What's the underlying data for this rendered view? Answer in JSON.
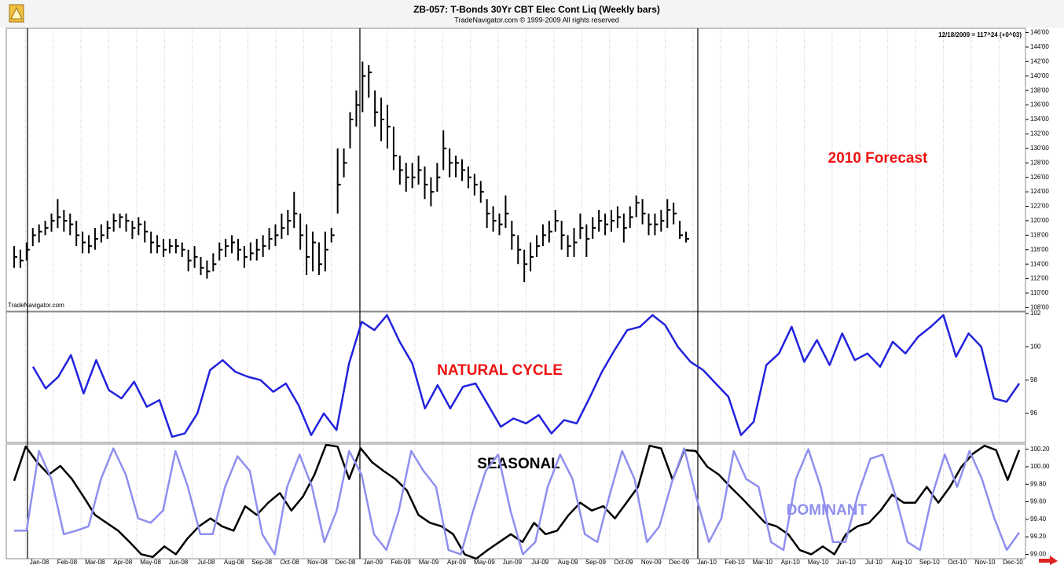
{
  "chart_data": [
    {
      "type": "ohlc",
      "title": "ZB-057:  T-Bonds 30Yr CBT Elec Cont Liq  (Weekly bars)",
      "subtitle": "TradeNavigator.com © 1999-2009 All rights reserved",
      "annotations": [
        "2010 Forecast",
        "TradeNavigator.com",
        "12/18/2009 = 117^24 (+0^03)"
      ],
      "color": "#000000",
      "ylim": [
        107.5,
        146.6
      ],
      "yticks": [
        {
          "value": 108,
          "label": "108'00"
        },
        {
          "value": 110,
          "label": "110'00"
        },
        {
          "value": 112,
          "label": "112'00"
        },
        {
          "value": 114,
          "label": "114'00"
        },
        {
          "value": 116,
          "label": "116'00"
        },
        {
          "value": 118,
          "label": "118'00"
        },
        {
          "value": 120,
          "label": "120'00"
        },
        {
          "value": 122,
          "label": "122'00"
        },
        {
          "value": 124,
          "label": "124'00"
        },
        {
          "value": 126,
          "label": "126'00"
        },
        {
          "value": 128,
          "label": "128'00"
        },
        {
          "value": 130,
          "label": "130'00"
        },
        {
          "value": 132,
          "label": "132'00"
        },
        {
          "value": 134,
          "label": "134'00"
        },
        {
          "value": 136,
          "label": "136'00"
        },
        {
          "value": 138,
          "label": "138'00"
        },
        {
          "value": 140,
          "label": "140'00"
        },
        {
          "value": 142,
          "label": "142'00"
        },
        {
          "value": 144,
          "label": "144'00"
        },
        {
          "value": 146,
          "label": "146'00"
        }
      ],
      "bars": [
        [
          116.5,
          113.5,
          115
        ],
        [
          116,
          113.5,
          114.5
        ],
        [
          117,
          114.5,
          116
        ],
        [
          119,
          116.5,
          118
        ],
        [
          119.5,
          117,
          118.5
        ],
        [
          120,
          118,
          119
        ],
        [
          121,
          118.5,
          120
        ],
        [
          123,
          119,
          120.5
        ],
        [
          121.5,
          118.5,
          120
        ],
        [
          121,
          118,
          119.5
        ],
        [
          120,
          116.5,
          118
        ],
        [
          118.5,
          115.5,
          117
        ],
        [
          118,
          115.5,
          116.5
        ],
        [
          119,
          116,
          117.5
        ],
        [
          119.5,
          117,
          118
        ],
        [
          120,
          117.5,
          119
        ],
        [
          121,
          118.5,
          120
        ],
        [
          121,
          119,
          120.5
        ],
        [
          121,
          118.5,
          120
        ],
        [
          120,
          117.5,
          119
        ],
        [
          120.5,
          118,
          119.5
        ],
        [
          120,
          117,
          118.5
        ],
        [
          118.5,
          115.5,
          117
        ],
        [
          118,
          115.5,
          116.5
        ],
        [
          117.5,
          115,
          116
        ],
        [
          117.5,
          115.5,
          116.5
        ],
        [
          117.5,
          115.5,
          116.5
        ],
        [
          117,
          115,
          116
        ],
        [
          116,
          113,
          114.5
        ],
        [
          116.5,
          113.5,
          115
        ],
        [
          115,
          112.5,
          113.5
        ],
        [
          114.5,
          112,
          113
        ],
        [
          115.5,
          113,
          114
        ],
        [
          117,
          114.5,
          116
        ],
        [
          117.5,
          115,
          116.5
        ],
        [
          118,
          115.5,
          117
        ],
        [
          117.5,
          114.5,
          116
        ],
        [
          116.5,
          113.5,
          115
        ],
        [
          117,
          114.5,
          115.5
        ],
        [
          117.5,
          114.5,
          116
        ],
        [
          118,
          115,
          116.5
        ],
        [
          119,
          116,
          117.5
        ],
        [
          119.5,
          116.5,
          118
        ],
        [
          121,
          117.5,
          119
        ],
        [
          121.5,
          118,
          120
        ],
        [
          124,
          119,
          121
        ],
        [
          121,
          116,
          118
        ],
        [
          119.5,
          112.5,
          115
        ],
        [
          118.5,
          113,
          117
        ],
        [
          117,
          112.5,
          114
        ],
        [
          118.5,
          113,
          116
        ],
        [
          119,
          117,
          118
        ],
        [
          130,
          121,
          125
        ],
        [
          130,
          126,
          128
        ],
        [
          135,
          130,
          134
        ],
        [
          138,
          133,
          136
        ],
        [
          142,
          135,
          140
        ],
        [
          141.5,
          137,
          140.5
        ],
        [
          138,
          133,
          135
        ],
        [
          137,
          131,
          134
        ],
        [
          136,
          130,
          133
        ],
        [
          133,
          127,
          129
        ],
        [
          129,
          125,
          127
        ],
        [
          128,
          124,
          126
        ],
        [
          128,
          124.5,
          126
        ],
        [
          129,
          125,
          127
        ],
        [
          127.5,
          123,
          125
        ],
        [
          126,
          122,
          124
        ],
        [
          128,
          124,
          126
        ],
        [
          132.5,
          127,
          130
        ],
        [
          130,
          126,
          128
        ],
        [
          129,
          126,
          128
        ],
        [
          128.5,
          125.5,
          127
        ],
        [
          127.5,
          124.5,
          126
        ],
        [
          126.5,
          123.5,
          125
        ],
        [
          125.5,
          122.5,
          124
        ],
        [
          123,
          119,
          121
        ],
        [
          122,
          118.5,
          120
        ],
        [
          121,
          118,
          119.5
        ],
        [
          123.5,
          119,
          121
        ],
        [
          120,
          116,
          118
        ],
        [
          118,
          114,
          116
        ],
        [
          116,
          111.5,
          114
        ],
        [
          117,
          113,
          115
        ],
        [
          118,
          115,
          116.5
        ],
        [
          119.5,
          116.5,
          118
        ],
        [
          120,
          117,
          118.5
        ],
        [
          121.5,
          118.5,
          120
        ],
        [
          120,
          116,
          118
        ],
        [
          118,
          115,
          116.5
        ],
        [
          119,
          115,
          117
        ],
        [
          121,
          117.5,
          119
        ],
        [
          119.5,
          115,
          117.5
        ],
        [
          120.5,
          117.5,
          119
        ],
        [
          121.5,
          118.5,
          120
        ],
        [
          121,
          118,
          119.5
        ],
        [
          121.5,
          118.5,
          120
        ],
        [
          122,
          119,
          120.5
        ],
        [
          121,
          117,
          119
        ],
        [
          122,
          119,
          120.5
        ],
        [
          123.5,
          120.5,
          122.5
        ],
        [
          123,
          119.5,
          121
        ],
        [
          121,
          118,
          119.5
        ],
        [
          121,
          118,
          119.5
        ],
        [
          121.5,
          118.5,
          120
        ],
        [
          123,
          119,
          121.5
        ],
        [
          122.5,
          119.5,
          121
        ],
        [
          120,
          117.5,
          118
        ],
        [
          118.5,
          117,
          117.5
        ]
      ]
    },
    {
      "type": "line",
      "ylim": [
        94.26,
        102.09
      ],
      "yticks": [
        96,
        98,
        100,
        102
      ],
      "series": [
        {
          "name": "NATURAL CYCLE",
          "color": "#2222dd",
          "values": [
            98.8,
            97.5,
            98.2,
            99.5,
            97.2,
            99.2,
            97.4,
            96.9,
            97.9,
            96.4,
            96.8,
            94.6,
            94.8,
            96.0,
            98.6,
            99.2,
            98.5,
            98.2,
            98.0,
            97.3,
            97.8,
            96.5,
            94.7,
            96.0,
            95.0,
            99.0,
            101.5,
            101.0,
            101.9,
            100.3,
            99.0,
            96.3,
            97.7,
            96.3,
            97.6,
            97.8,
            96.5,
            95.2,
            95.7,
            95.4,
            95.9,
            94.8,
            95.6,
            95.4,
            96.9,
            98.5,
            99.8,
            101.0,
            101.2,
            101.9,
            101.3,
            100.0,
            99.1,
            98.6,
            97.8,
            97.0,
            94.7,
            95.5,
            98.9,
            99.6,
            101.2,
            99.1,
            100.4,
            98.9,
            100.8,
            99.2,
            99.6,
            98.8,
            100.3,
            99.6,
            100.6,
            101.2,
            101.9,
            99.4,
            100.8,
            100.0,
            96.9,
            96.7,
            97.8
          ]
        }
      ]
    },
    {
      "type": "line",
      "ylim": [
        98.95,
        100.26
      ],
      "yticks": [
        {
          "value": 99,
          "label": "99.00"
        },
        {
          "value": 99.2,
          "label": "99.20"
        },
        {
          "value": 99.4,
          "label": "99.40"
        },
        {
          "value": 99.6,
          "label": "99.60"
        },
        {
          "value": 99.8,
          "label": "99.80"
        },
        {
          "value": 100,
          "label": "100.00"
        },
        {
          "value": 100.2,
          "label": "100.20"
        }
      ],
      "x_labels": [
        "Jan-08",
        "Feb-08",
        "Mar-08",
        "Apr-08",
        "May-08",
        "Jun-08",
        "Jul-08",
        "Aug-08",
        "Sep-08",
        "Oct-08",
        "Nov-08",
        "Dec-08",
        "Jan-09",
        "Feb-09",
        "Mar-09",
        "Apr-09",
        "May-09",
        "Jun-09",
        "Jul-09",
        "Aug-09",
        "Sep-09",
        "Oct-09",
        "Nov-09",
        "Dec-09",
        "Jan-10",
        "Feb-10",
        "Mar-10",
        "Apr-10",
        "May-10",
        "Jun-10",
        "Jul-10",
        "Aug-10",
        "Sep-10",
        "Oct-10",
        "Nov-10",
        "Dec-10"
      ],
      "series": [
        {
          "name": "SEASONAL",
          "color": "#000000",
          "values": [
            99.84,
            100.23,
            100.05,
            99.91,
            100.01,
            99.86,
            99.66,
            99.45,
            99.36,
            99.27,
            99.14,
            99.0,
            98.97,
            99.09,
            99.0,
            99.18,
            99.32,
            99.41,
            99.32,
            99.27,
            99.55,
            99.45,
            99.59,
            99.7,
            99.5,
            99.66,
            99.91,
            100.25,
            100.23,
            99.86,
            100.21,
            100.05,
            99.95,
            99.86,
            99.73,
            99.45,
            99.36,
            99.32,
            99.23,
            99.0,
            98.95,
            99.05,
            99.14,
            99.23,
            99.14,
            99.36,
            99.23,
            99.27,
            99.45,
            99.59,
            99.5,
            99.55,
            99.41,
            99.59,
            99.77,
            100.24,
            100.21,
            99.85,
            100.19,
            100.18,
            100.0,
            99.91,
            99.77,
            99.64,
            99.5,
            99.36,
            99.32,
            99.23,
            99.05,
            99.0,
            99.09,
            99.0,
            99.23,
            99.32,
            99.36,
            99.5,
            99.68,
            99.59,
            99.59,
            99.77,
            99.59,
            99.77,
            100.0,
            100.15,
            100.24,
            100.19,
            99.85,
            100.19
          ]
        },
        {
          "name": "DOMINANT",
          "color": "#8f8fef",
          "values": [
            99.27,
            99.27,
            100.18,
            99.86,
            99.23,
            99.27,
            99.32,
            99.86,
            100.21,
            99.91,
            99.41,
            99.36,
            99.5,
            100.18,
            99.77,
            99.23,
            99.23,
            99.77,
            100.12,
            99.95,
            99.23,
            99.0,
            99.77,
            100.14,
            99.77,
            99.14,
            99.5,
            100.18,
            99.91,
            99.23,
            99.05,
            99.5,
            100.18,
            99.95,
            99.77,
            99.05,
            99.0,
            99.5,
            99.95,
            100.14,
            99.5,
            99.0,
            99.14,
            99.77,
            100.14,
            99.86,
            99.23,
            99.14,
            99.68,
            100.18,
            99.86,
            99.14,
            99.32,
            99.82,
            100.21,
            99.64,
            99.14,
            99.41,
            100.18,
            99.86,
            99.77,
            99.14,
            99.05,
            99.86,
            100.2,
            99.77,
            99.14,
            99.14,
            99.68,
            100.09,
            100.14,
            99.68,
            99.14,
            99.05,
            99.68,
            100.14,
            99.77,
            100.18,
            99.86,
            99.41,
            99.05,
            99.25
          ]
        }
      ]
    }
  ]
}
